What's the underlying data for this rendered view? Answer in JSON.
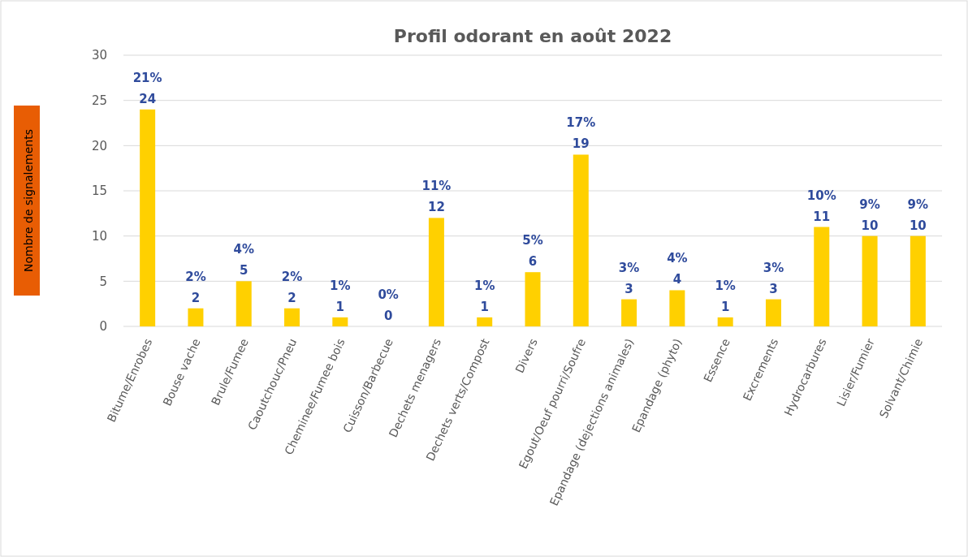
{
  "chart_data": {
    "type": "bar",
    "title": "Profil odorant en août 2022",
    "ylabel": "Nombre de signalements",
    "categories": [
      "Bitume/Enrobes",
      "Bouse vache",
      "Brule/Fumee",
      "Caoutchouc/Pneu",
      "Cheminee/Fumee bois",
      "Cuisson/Barbecue",
      "Dechets menagers",
      "Dechets verts/Compost",
      "Divers",
      "Egout/Oeuf pourri/Soufre",
      "Epandage (dejections animales)",
      "Epandage (phyto)",
      "Essence",
      "Excrements",
      "Hydrocarbures",
      "Lisier/Fumier",
      "Solvant/Chimie"
    ],
    "values": [
      24,
      2,
      5,
      2,
      1,
      0,
      12,
      1,
      6,
      19,
      3,
      4,
      1,
      3,
      11,
      10,
      10
    ],
    "value_labels": [
      "21%\n24",
      "2%\n2",
      "4%\n5",
      "2%\n2",
      "1%\n1",
      "0%\n0",
      "11%\n12",
      "1%\n1",
      "5%\n6",
      "17%\n19",
      "3%\n3",
      "4%\n4",
      "1%\n1",
      "3%\n3",
      "10%\n11",
      "9%\n10",
      "9%\n10"
    ],
    "color": "#ffd000",
    "ylim": [
      0,
      30
    ],
    "yticks": [
      0,
      5,
      10,
      15,
      20,
      25,
      30
    ],
    "grid": "y"
  }
}
